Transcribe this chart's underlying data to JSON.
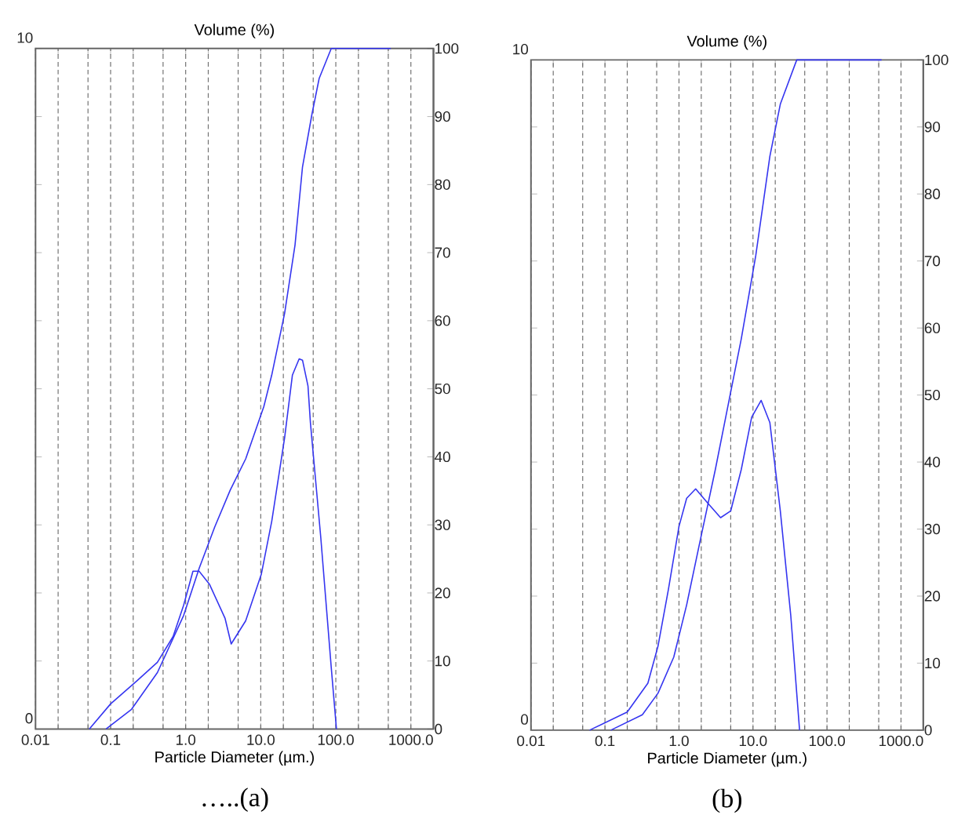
{
  "chart_data": [
    {
      "type": "line",
      "title": "Volume (%)",
      "xlabel": "Particle Diameter (µm.)",
      "annotations": [
        "…..(a)"
      ],
      "log": "x",
      "grid": "x",
      "xlim": [
        0.01,
        2000
      ],
      "xticks": [
        {
          "value": 0.01,
          "label": "0.01"
        },
        {
          "value": 0.02,
          "label": null
        },
        {
          "value": 0.05,
          "label": null
        },
        {
          "value": 0.1,
          "label": "0.1"
        },
        {
          "value": 0.2,
          "label": null
        },
        {
          "value": 0.5,
          "label": null
        },
        {
          "value": 1,
          "label": "1.0"
        },
        {
          "value": 2,
          "label": null
        },
        {
          "value": 5,
          "label": null
        },
        {
          "value": 10,
          "label": "10.0"
        },
        {
          "value": 20,
          "label": null
        },
        {
          "value": 50,
          "label": null
        },
        {
          "value": 100,
          "label": "100.0"
        },
        {
          "value": 200,
          "label": null
        },
        {
          "value": 500,
          "label": null
        },
        {
          "value": 1000,
          "label": "1000.0"
        }
      ],
      "ylim": [
        0,
        10
      ],
      "yticks": [
        0,
        {
          "value": 1,
          "label": null
        },
        {
          "value": 2,
          "label": null
        },
        {
          "value": 3,
          "label": null
        },
        {
          "value": 4,
          "label": null
        },
        {
          "value": 5,
          "label": null
        },
        {
          "value": 6,
          "label": null
        },
        {
          "value": 7,
          "label": null
        },
        {
          "value": 8,
          "label": null
        },
        {
          "value": 9,
          "label": null
        },
        10
      ],
      "y2lim": [
        0,
        100
      ],
      "y2ticks": [
        0,
        10,
        20,
        30,
        40,
        50,
        60,
        70,
        80,
        90,
        100
      ],
      "series": [
        {
          "color": "#3535f0",
          "x": [
            0.052,
            0.1,
            0.225,
            0.42,
            0.68,
            0.94,
            1.25,
            1.51,
            2.07,
            3.34,
            4.04,
            6.3,
            10.2,
            14,
            20.8,
            26.4,
            32.5,
            36,
            42.6,
            45.9,
            63,
            87,
            102
          ],
          "values": [
            0,
            0.37,
            0.71,
            0.98,
            1.36,
            1.82,
            2.32,
            2.32,
            2.13,
            1.63,
            1.25,
            1.59,
            2.28,
            3.05,
            4.28,
            5.2,
            5.44,
            5.42,
            5.04,
            4.5,
            2.82,
            0.9,
            0
          ]
        },
        {
          "color": "#3535f0",
          "axis": "y2",
          "x": [
            0.087,
            0.19,
            0.42,
            0.94,
            1.51,
            2.44,
            3.92,
            6.3,
            11,
            14,
            20.8,
            28.6,
            36,
            48,
            60,
            87,
            540
          ],
          "values": [
            0,
            2.9,
            8.3,
            16.7,
            23.6,
            29.7,
            35.1,
            39.7,
            47.4,
            52,
            61.1,
            71.1,
            82.6,
            90.3,
            95.6,
            100,
            100
          ]
        }
      ]
    },
    {
      "type": "line",
      "title": "Volume (%)",
      "xlabel": "Particle Diameter (µm.)",
      "annotations": [
        "(b)"
      ],
      "log": "x",
      "grid": "x",
      "xlim": [
        0.01,
        2000
      ],
      "xticks": [
        {
          "value": 0.01,
          "label": "0.01"
        },
        {
          "value": 0.02,
          "label": null
        },
        {
          "value": 0.05,
          "label": null
        },
        {
          "value": 0.1,
          "label": "0.1"
        },
        {
          "value": 0.2,
          "label": null
        },
        {
          "value": 0.5,
          "label": null
        },
        {
          "value": 1,
          "label": "1.0"
        },
        {
          "value": 2,
          "label": null
        },
        {
          "value": 5,
          "label": null
        },
        {
          "value": 10,
          "label": "10.0"
        },
        {
          "value": 20,
          "label": null
        },
        {
          "value": 50,
          "label": null
        },
        {
          "value": 100,
          "label": "100.0"
        },
        {
          "value": 200,
          "label": null
        },
        {
          "value": 500,
          "label": null
        },
        {
          "value": 1000,
          "label": "1000.0"
        }
      ],
      "ylim": [
        0,
        10
      ],
      "yticks": [
        0,
        {
          "value": 1,
          "label": null
        },
        {
          "value": 2,
          "label": null
        },
        {
          "value": 3,
          "label": null
        },
        {
          "value": 4,
          "label": null
        },
        {
          "value": 5,
          "label": null
        },
        {
          "value": 6,
          "label": null
        },
        {
          "value": 7,
          "label": null
        },
        {
          "value": 8,
          "label": null
        },
        {
          "value": 9,
          "label": null
        },
        10
      ],
      "y2lim": [
        0,
        100
      ],
      "y2ticks": [
        0,
        10,
        20,
        30,
        40,
        50,
        60,
        70,
        80,
        90,
        100
      ],
      "series": [
        {
          "color": "#3535f0",
          "x": [
            0.062,
            0.2,
            0.38,
            0.52,
            0.72,
            1.0,
            1.27,
            1.68,
            2.44,
            3.65,
            5.0,
            6.95,
            9.6,
            12.9,
            16.9,
            23.4,
            32.4,
            42.6
          ],
          "values": [
            0,
            0.27,
            0.7,
            1.25,
            2.1,
            3.04,
            3.46,
            3.6,
            3.39,
            3.17,
            3.27,
            3.89,
            4.67,
            4.92,
            4.59,
            3.27,
            1.71,
            0
          ]
        },
        {
          "color": "#3535f0",
          "axis": "y2",
          "x": [
            0.12,
            0.32,
            0.52,
            0.85,
            1.27,
            1.91,
            3.1,
            4.28,
            6.95,
            10.9,
            16.9,
            23.4,
            39,
            546
          ],
          "values": [
            0,
            2.3,
            5.5,
            10.9,
            18.7,
            28,
            38.9,
            46.7,
            58.4,
            70.8,
            85.6,
            93.4,
            100,
            100
          ]
        }
      ]
    }
  ]
}
